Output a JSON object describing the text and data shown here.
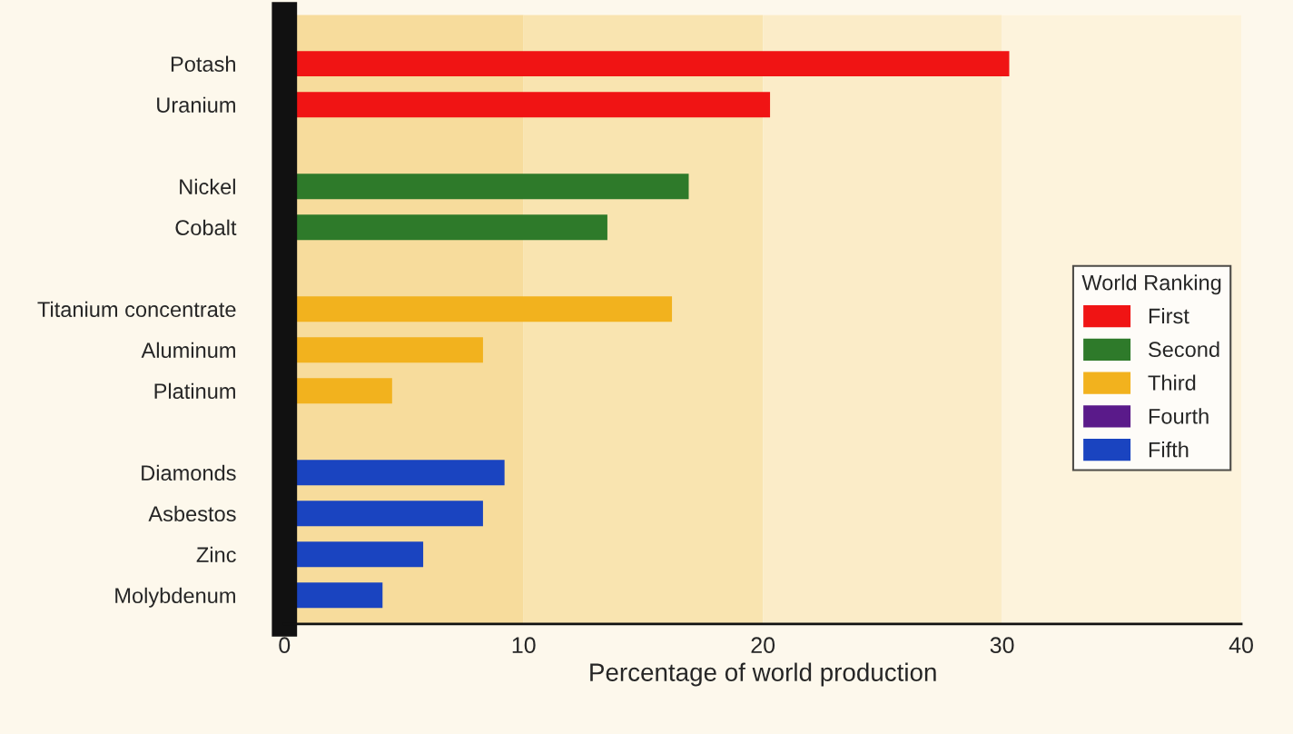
{
  "chart_data": {
    "type": "bar",
    "orientation": "horizontal",
    "xlabel": "Percentage of world production",
    "categories": [
      "Potash",
      "Uranium",
      null,
      "Nickel",
      "Cobalt",
      null,
      "Titanium concentrate",
      "Aluminum",
      "Platinum",
      null,
      "Diamonds",
      "Asbestos",
      "Zinc",
      "Molybdenum"
    ],
    "series": [
      {
        "name": "First",
        "color": "#f01414",
        "values": [
          30.3,
          20.3,
          null,
          null,
          null,
          null,
          null,
          null,
          null,
          null,
          null,
          null,
          null,
          null
        ]
      },
      {
        "name": "Second",
        "color": "#2e7a2a",
        "values": [
          null,
          null,
          null,
          16.9,
          13.5,
          null,
          null,
          null,
          null,
          null,
          null,
          null,
          null,
          null
        ]
      },
      {
        "name": "Third",
        "color": "#f2b21e",
        "values": [
          null,
          null,
          null,
          null,
          null,
          null,
          16.2,
          8.3,
          4.5,
          null,
          null,
          null,
          null,
          null
        ]
      },
      {
        "name": "Fourth",
        "color": "#5a1a8a",
        "values": [
          null,
          null,
          null,
          null,
          null,
          null,
          null,
          null,
          null,
          null,
          null,
          null,
          null,
          null
        ]
      },
      {
        "name": "Fifth",
        "color": "#1a44c0",
        "values": [
          null,
          null,
          null,
          null,
          null,
          null,
          null,
          null,
          null,
          null,
          9.2,
          8.3,
          5.8,
          4.1
        ]
      }
    ],
    "legend_title": "World Ranking",
    "legend": "right",
    "xlim": [
      0,
      40
    ],
    "xticks": [
      0,
      10,
      20,
      30,
      40
    ],
    "grid": false,
    "bands": [
      {
        "axis": "x",
        "from": 0,
        "to": 10,
        "color": "#f7dc9c"
      },
      {
        "axis": "x",
        "from": 10,
        "to": 20,
        "color": "#f9e4b0"
      },
      {
        "axis": "x",
        "from": 20,
        "to": 30,
        "color": "#fbecc8"
      },
      {
        "axis": "x",
        "from": 30,
        "to": 40,
        "color": "#fdf3dc"
      }
    ]
  }
}
